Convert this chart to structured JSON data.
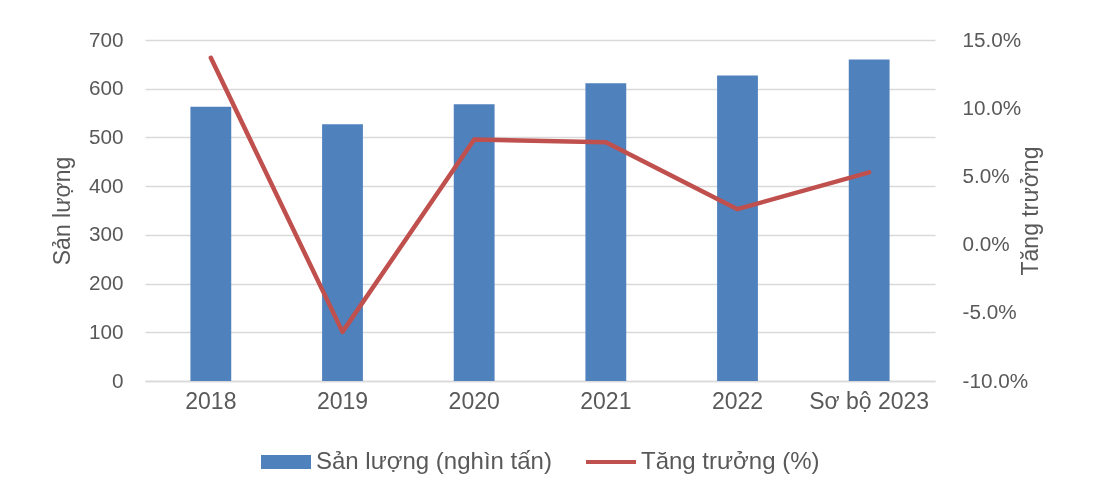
{
  "chart_data": {
    "type": "bar",
    "categories": [
      "2018",
      "2019",
      "2020",
      "2021",
      "2022",
      "Sơ bộ 2023"
    ],
    "series": [
      {
        "name": "Sản lượng (nghìn tấn)",
        "color": "#4f81bd",
        "values": [
          563,
          527,
          568,
          611,
          627,
          660
        ]
      },
      {
        "name": "Tăng trưởng (%)",
        "type": "line",
        "axis": "y2",
        "color": "#c0504d",
        "values": [
          13.7,
          -6.4,
          7.7,
          7.5,
          2.6,
          5.3
        ]
      }
    ],
    "ylabel": "Sản lượng",
    "y2label": "Tăng trưởng",
    "ylim": [
      0,
      700
    ],
    "yticks": [
      0,
      100,
      200,
      300,
      400,
      500,
      600,
      700
    ],
    "y2lim": [
      -10,
      15
    ],
    "y2ticks": [
      {
        "value": -10,
        "label": "-10.0%"
      },
      {
        "value": -5,
        "label": "-5.0%"
      },
      {
        "value": 0,
        "label": "0.0%"
      },
      {
        "value": 5,
        "label": "5.0%"
      },
      {
        "value": 10,
        "label": "10.0%"
      },
      {
        "value": 15,
        "label": "15.0%"
      }
    ],
    "grid": "y",
    "legend": "bottom"
  }
}
